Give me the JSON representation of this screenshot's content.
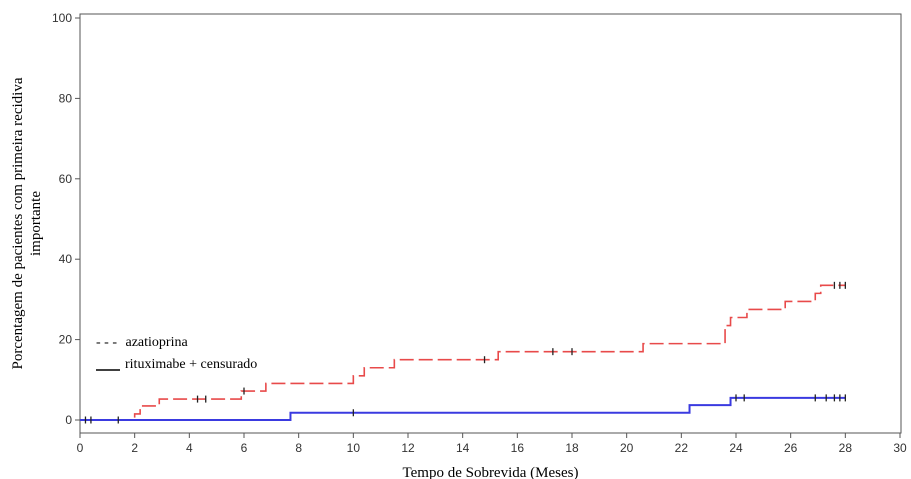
{
  "chart_data": {
    "type": "line",
    "title": "",
    "xlabel": "Tempo de Sobrevida (Meses)",
    "ylabel_line1": "Porcentagem de pacientes com primeira recidiva",
    "ylabel_line2": "importante",
    "xlim": [
      0,
      30
    ],
    "ylim": [
      0,
      100
    ],
    "x_ticks": [
      "0",
      "2",
      "4",
      "6",
      "8",
      "10",
      "12",
      "14",
      "16",
      "18",
      "20",
      "22",
      "24",
      "26",
      "28",
      "30"
    ],
    "y_ticks": [
      "0",
      "20",
      "40",
      "60",
      "80",
      "100"
    ],
    "grid": false,
    "legend_position": "bottom-left",
    "legend": [
      {
        "symbol": "- - -",
        "label": "azatioprina"
      },
      {
        "symbol": "____",
        "label": "rituximabe + censurado"
      }
    ],
    "series": [
      {
        "name": "azatioprina",
        "color": "#e84a4a",
        "style": "dashed",
        "steps": [
          [
            0,
            0
          ],
          [
            1.9,
            0
          ],
          [
            2.0,
            1.5
          ],
          [
            2.2,
            3.5
          ],
          [
            2.9,
            5.2
          ],
          [
            5.9,
            7.2
          ],
          [
            6.8,
            9.1
          ],
          [
            10.0,
            11.0
          ],
          [
            10.4,
            13.0
          ],
          [
            11.5,
            15.0
          ],
          [
            15.3,
            17.0
          ],
          [
            20.6,
            19.0
          ],
          [
            23.6,
            23.5
          ],
          [
            23.8,
            25.5
          ],
          [
            24.4,
            27.5
          ],
          [
            25.8,
            29.5
          ],
          [
            26.9,
            31.5
          ],
          [
            27.1,
            33.5
          ],
          [
            28.0,
            33.5
          ]
        ],
        "censored": [
          [
            4.3,
            5.2
          ],
          [
            4.6,
            5.2
          ],
          [
            6.0,
            7.2
          ],
          [
            14.8,
            15.0
          ],
          [
            17.3,
            17.0
          ],
          [
            18.0,
            17.0
          ],
          [
            27.6,
            33.5
          ],
          [
            27.8,
            33.5
          ],
          [
            28.0,
            33.5
          ]
        ]
      },
      {
        "name": "rituximabe + censurado",
        "color": "#3a3ae0",
        "style": "solid",
        "steps": [
          [
            0,
            0
          ],
          [
            7.7,
            1.8
          ],
          [
            22.3,
            3.7
          ],
          [
            23.8,
            5.5
          ],
          [
            28.0,
            5.5
          ]
        ],
        "censored": [
          [
            0.2,
            0
          ],
          [
            0.4,
            0
          ],
          [
            1.4,
            0
          ],
          [
            10.0,
            1.8
          ],
          [
            24.0,
            5.5
          ],
          [
            24.3,
            5.5
          ],
          [
            26.9,
            5.5
          ],
          [
            27.3,
            5.5
          ],
          [
            27.6,
            5.5
          ],
          [
            27.8,
            5.5
          ],
          [
            28.0,
            5.5
          ]
        ]
      }
    ]
  }
}
